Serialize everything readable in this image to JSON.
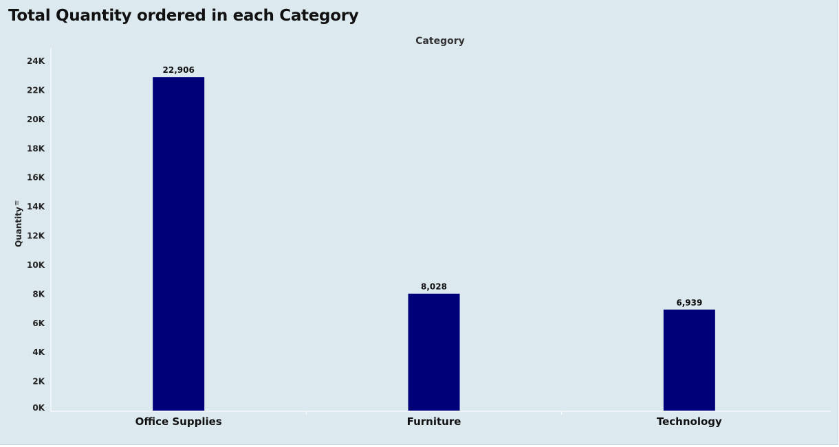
{
  "page": {
    "title": "Total Quantity ordered in each Category"
  },
  "chart_data": {
    "type": "bar",
    "column_header": "Category",
    "ylabel": "Quantity",
    "xlabel": "",
    "categories": [
      "Office Supplies",
      "Furniture",
      "Technology"
    ],
    "values": [
      22906,
      8028,
      6939
    ],
    "data_labels": [
      "22,906",
      "8,028",
      "6,939"
    ],
    "ylim": [
      0,
      24000
    ],
    "yticks": [
      0,
      2000,
      4000,
      6000,
      8000,
      10000,
      12000,
      14000,
      16000,
      18000,
      20000,
      22000,
      24000
    ],
    "ytick_labels": [
      "0K",
      "2K",
      "4K",
      "6K",
      "8K",
      "10K",
      "12K",
      "14K",
      "16K",
      "18K",
      "20K",
      "22K",
      "24K"
    ],
    "grid": false,
    "legend": "none",
    "bar_color": "#000078",
    "background_color": "#dce9ef",
    "axis_color": "#ffffff"
  },
  "icons": {
    "sort": "sort-descending-icon"
  }
}
